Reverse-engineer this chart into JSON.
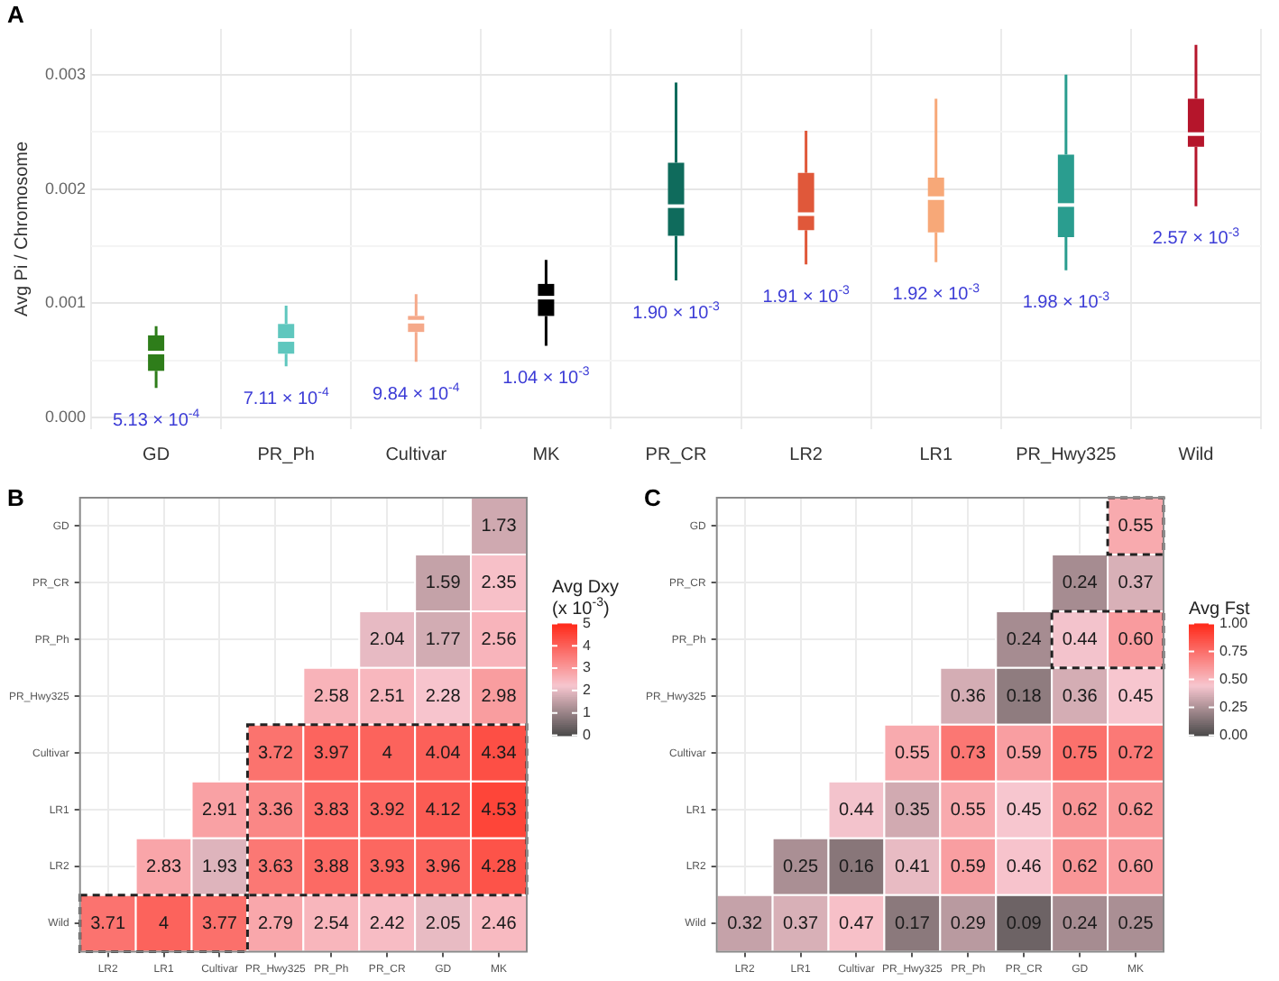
{
  "chart_data": [
    {
      "type": "box",
      "title": "A",
      "ylabel": "Avg Pi / Chromosome",
      "categories": [
        "GD",
        "PR_Ph",
        "Cultivar",
        "MK",
        "PR_CR",
        "LR2",
        "LR1",
        "PR_Hwy325",
        "Wild"
      ],
      "boxes": [
        {
          "low": 0.00026,
          "q1": 0.00041,
          "median": 0.00057,
          "q3": 0.00072,
          "high": 0.0008
        },
        {
          "low": 0.00045,
          "q1": 0.00056,
          "median": 0.00068,
          "q3": 0.00082,
          "high": 0.00098
        },
        {
          "low": 0.00049,
          "q1": 0.00075,
          "median": 0.00084,
          "q3": 0.00089,
          "high": 0.00108
        },
        {
          "low": 0.00063,
          "q1": 0.00089,
          "median": 0.00105,
          "q3": 0.00117,
          "high": 0.00138
        },
        {
          "low": 0.0012,
          "q1": 0.00159,
          "median": 0.00185,
          "q3": 0.00223,
          "high": 0.00293
        },
        {
          "low": 0.00134,
          "q1": 0.00164,
          "median": 0.00178,
          "q3": 0.00214,
          "high": 0.00251
        },
        {
          "low": 0.00136,
          "q1": 0.00162,
          "median": 0.00192,
          "q3": 0.0021,
          "high": 0.00279
        },
        {
          "low": 0.00129,
          "q1": 0.00158,
          "median": 0.00186,
          "q3": 0.0023,
          "high": 0.003
        },
        {
          "low": 0.00185,
          "q1": 0.00237,
          "median": 0.00248,
          "q3": 0.00279,
          "high": 0.00326
        }
      ],
      "colors": [
        "#2e7d1a",
        "#5fc7be",
        "#f5a98a",
        "#000000",
        "#0f6b5c",
        "#e0583a",
        "#f7a878",
        "#2a9d8f",
        "#b5152b"
      ],
      "ylim": [
        -0.0001,
        0.0034
      ],
      "yticks": [
        {
          "value": 0,
          "label": "0.000"
        },
        {
          "value": 0.0005,
          "label": null
        },
        {
          "value": 0.001,
          "label": "0.001"
        },
        {
          "value": 0.0015,
          "label": null
        },
        {
          "value": 0.002,
          "label": "0.002"
        },
        {
          "value": 0.0025,
          "label": null
        },
        {
          "value": 0.003,
          "label": "0.003"
        }
      ],
      "grid": true,
      "annotations": [
        "5.13 × 10$^{-4}$",
        "7.11 × 10$^{-4}$",
        "9.84 × 10$^{-4}$",
        "1.04 × 10$^{-3}$",
        "1.90 × 10$^{-3}$",
        "1.91 × 10$^{-3}$",
        "1.92 × 10$^{-3}$",
        "1.98 × 10$^{-3}$",
        "2.57 × 10$^{-3}$"
      ]
    },
    {
      "type": "heatmap",
      "title": "B",
      "clabel": "Avg Dxy (x 10$^{-3}$)",
      "categories": [
        "LR2",
        "LR1",
        "Cultivar",
        "PR_Hwy325",
        "PR_Ph",
        "PR_CR",
        "GD",
        "MK"
      ],
      "y_categories": [
        "GD",
        "PR_CR",
        "PR_Ph",
        "PR_Hwy325",
        "Cultivar",
        "LR1",
        "LR2",
        "Wild"
      ],
      "cells": [
        [
          null,
          null,
          null,
          null,
          null,
          null,
          null,
          1.73
        ],
        [
          null,
          null,
          null,
          null,
          null,
          null,
          1.59,
          2.35
        ],
        [
          null,
          null,
          null,
          null,
          null,
          2.04,
          1.77,
          2.56
        ],
        [
          null,
          null,
          null,
          null,
          2.58,
          2.51,
          2.28,
          2.98
        ],
        [
          null,
          null,
          null,
          3.72,
          3.97,
          4,
          4.04,
          4.34
        ],
        [
          null,
          null,
          2.91,
          3.36,
          3.83,
          3.92,
          4.12,
          4.53
        ],
        [
          null,
          2.83,
          1.93,
          3.63,
          3.88,
          3.93,
          3.96,
          4.28
        ],
        [
          3.71,
          4,
          3.77,
          2.79,
          2.54,
          2.42,
          2.05,
          2.46
        ]
      ],
      "data_labels": true,
      "clim": [
        0,
        5
      ],
      "cticks": [
        0,
        1,
        2,
        3,
        4,
        5
      ],
      "grid": true
    },
    {
      "type": "heatmap",
      "title": "C",
      "clabel": "Avg Fst",
      "categories": [
        "LR2",
        "LR1",
        "Cultivar",
        "PR_Hwy325",
        "PR_Ph",
        "PR_CR",
        "GD",
        "MK"
      ],
      "y_categories": [
        "GD",
        "PR_CR",
        "PR_Ph",
        "PR_Hwy325",
        "Cultivar",
        "LR1",
        "LR2",
        "Wild"
      ],
      "cells": [
        [
          null,
          null,
          null,
          null,
          null,
          null,
          null,
          0.55
        ],
        [
          null,
          null,
          null,
          null,
          null,
          null,
          0.24,
          0.37
        ],
        [
          null,
          null,
          null,
          null,
          null,
          0.24,
          0.44,
          0.6
        ],
        [
          null,
          null,
          null,
          null,
          0.36,
          0.18,
          0.36,
          0.45
        ],
        [
          null,
          null,
          null,
          0.55,
          0.73,
          0.59,
          0.75,
          0.72
        ],
        [
          null,
          null,
          0.44,
          0.35,
          0.55,
          0.45,
          0.62,
          0.62
        ],
        [
          null,
          0.25,
          0.16,
          0.41,
          0.59,
          0.46,
          0.62,
          0.6
        ],
        [
          0.32,
          0.37,
          0.47,
          0.17,
          0.29,
          0.09,
          0.24,
          0.25
        ]
      ],
      "cell_labels": [
        [
          null,
          null,
          null,
          null,
          null,
          null,
          null,
          "0.55"
        ],
        [
          null,
          null,
          null,
          null,
          null,
          null,
          "0.24",
          "0.37"
        ],
        [
          null,
          null,
          null,
          null,
          null,
          "0.24",
          "0.44",
          "0.60"
        ],
        [
          null,
          null,
          null,
          null,
          "0.36",
          "0.18",
          "0.36",
          "0.45"
        ],
        [
          null,
          null,
          null,
          "0.55",
          "0.73",
          "0.59",
          "0.75",
          "0.72"
        ],
        [
          null,
          null,
          "0.44",
          "0.35",
          "0.55",
          "0.45",
          "0.62",
          "0.62"
        ],
        [
          null,
          "0.25",
          "0.16",
          "0.41",
          "0.59",
          "0.46",
          "0.62",
          "0.60"
        ],
        [
          "0.32",
          "0.37",
          "0.47",
          "0.17",
          "0.29",
          "0.09",
          "0.24",
          "0.25"
        ]
      ],
      "clim": [
        0,
        1
      ],
      "cticks": [
        {
          "value": 0,
          "label": "0.00"
        },
        {
          "value": 0.25,
          "label": "0.25"
        },
        {
          "value": 0.5,
          "label": "0.50"
        },
        {
          "value": 0.75,
          "label": "0.75"
        },
        {
          "value": 1,
          "label": "1.00"
        }
      ],
      "grid": true
    }
  ]
}
